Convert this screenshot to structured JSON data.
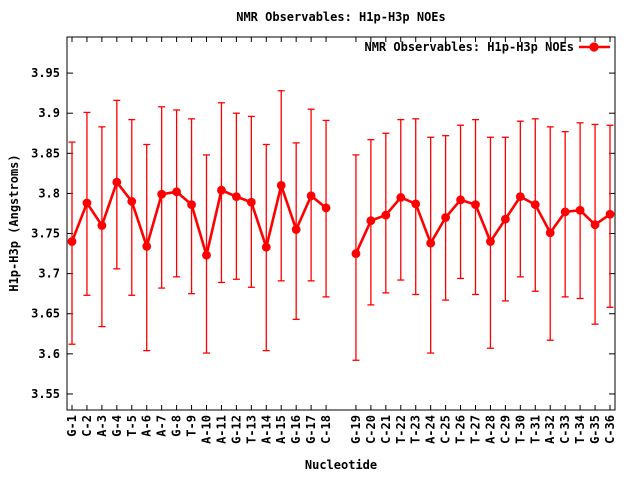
{
  "window": {
    "name": "gnuplot chart"
  },
  "chart_data": {
    "type": "line",
    "title": "NMR Observables: H1p-H3p NOEs",
    "xlabel": "Nucleotide",
    "ylabel": "H1p-H3p (Angstroms)",
    "legend": {
      "label": "NMR Observables: H1p-H3p NOEs",
      "position": "top-right-inside"
    },
    "colors": {
      "series": "#ff0000",
      "axis": "#000000",
      "background": "#ffffff"
    },
    "grid": false,
    "ylim": [
      3.53,
      3.995
    ],
    "yticks": [
      3.55,
      3.6,
      3.65,
      3.7,
      3.75,
      3.8,
      3.85,
      3.9,
      3.95
    ],
    "gap_after_category": "C-18",
    "categories": [
      "G-1",
      "C-2",
      "A-3",
      "G-4",
      "T-5",
      "A-6",
      "A-7",
      "G-8",
      "T-9",
      "A-10",
      "A-11",
      "G-12",
      "T-13",
      "A-14",
      "A-15",
      "G-16",
      "G-17",
      "C-18",
      "G-19",
      "C-20",
      "C-21",
      "T-22",
      "T-23",
      "A-24",
      "C-25",
      "T-26",
      "T-27",
      "A-28",
      "C-29",
      "T-30",
      "T-31",
      "A-32",
      "C-33",
      "T-34",
      "G-35",
      "C-36"
    ],
    "series": [
      {
        "name": "NMR Observables: H1p-H3p NOEs",
        "marker": "filled-circle",
        "values": [
          3.74,
          3.788,
          3.76,
          3.814,
          3.79,
          3.734,
          3.799,
          3.802,
          3.786,
          3.723,
          3.804,
          3.796,
          3.789,
          3.733,
          3.81,
          3.755,
          3.797,
          3.782,
          3.725,
          3.766,
          3.773,
          3.795,
          3.787,
          3.738,
          3.77,
          3.792,
          3.786,
          3.74,
          3.768,
          3.796,
          3.786,
          3.751,
          3.777,
          3.779,
          3.761,
          3.774
        ],
        "err_low": [
          3.612,
          3.673,
          3.634,
          3.706,
          3.673,
          3.604,
          3.682,
          3.696,
          3.675,
          3.601,
          3.689,
          3.693,
          3.683,
          3.604,
          3.691,
          3.643,
          3.691,
          3.671,
          3.592,
          3.661,
          3.676,
          3.692,
          3.674,
          3.601,
          3.667,
          3.694,
          3.674,
          3.607,
          3.666,
          3.696,
          3.678,
          3.617,
          3.671,
          3.669,
          3.637,
          3.658
        ],
        "err_high": [
          3.864,
          3.901,
          3.883,
          3.916,
          3.892,
          3.861,
          3.908,
          3.904,
          3.893,
          3.848,
          3.913,
          3.9,
          3.896,
          3.861,
          3.928,
          3.863,
          3.905,
          3.891,
          3.848,
          3.867,
          3.875,
          3.892,
          3.893,
          3.87,
          3.872,
          3.885,
          3.892,
          3.87,
          3.87,
          3.89,
          3.893,
          3.883,
          3.877,
          3.888,
          3.886,
          3.885
        ]
      }
    ]
  }
}
